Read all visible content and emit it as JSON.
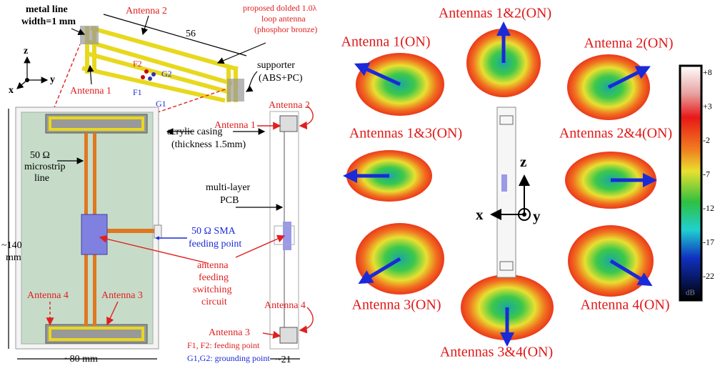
{
  "left_panel": {
    "metal_line": [
      "metal line",
      "width=1 mm"
    ],
    "top_antenna_label": "Antenna 2",
    "length_label": "56",
    "proposed": [
      "proposed dolded 1.0λ",
      "loop antenna",
      "(phosphor bronze)"
    ],
    "axes": {
      "z": "z",
      "x": "x",
      "y": "y"
    },
    "ports": {
      "f2": "F2",
      "g2": "G2",
      "f1": "F1",
      "g1": "G1"
    },
    "antenna1_label": "Antenna 1",
    "supporter": [
      "supporter",
      "(ABS+PC)"
    ],
    "casing": [
      "acrylic casing",
      "(thickness 1.5mm)"
    ],
    "microstrip": [
      "50 Ω",
      "microstrip",
      "line"
    ],
    "pcb": [
      "multi-layer",
      "PCB"
    ],
    "sma": [
      "50 Ω SMA",
      "feeding point"
    ],
    "switching": [
      "antenna",
      "feeding",
      "switching",
      "circuit"
    ],
    "height": [
      "~140",
      "mm"
    ],
    "board_antenna4": "Antenna 4",
    "board_antenna3": "Antenna 3",
    "side_antenna2": "Antenna 2",
    "side_antenna1": "Antenna 1",
    "side_antenna4": "Antenna 4",
    "side_antenna3": "Antenna 3",
    "width": "~80 mm",
    "legend": [
      "F1, F2: feeding point",
      "G1,G2: grounding point"
    ],
    "thickness": "~21"
  },
  "right_panel": {
    "patterns": [
      "Antennas 1&2(ON)",
      "Antenna 1(ON)",
      "Antenna 2(ON)",
      "Antennas 1&3(ON)",
      "Antennas 2&4(ON)",
      "Antenna 3(ON)",
      "Antenna 4(ON)",
      "Antennas 3&4(ON)"
    ],
    "axes": {
      "z": "z",
      "x": "x",
      "y": "y"
    },
    "colorbar": {
      "ticks": [
        "+8",
        "+3",
        "-2",
        "-7",
        "-12",
        "-17",
        "-22"
      ],
      "unit": "dB"
    }
  }
}
